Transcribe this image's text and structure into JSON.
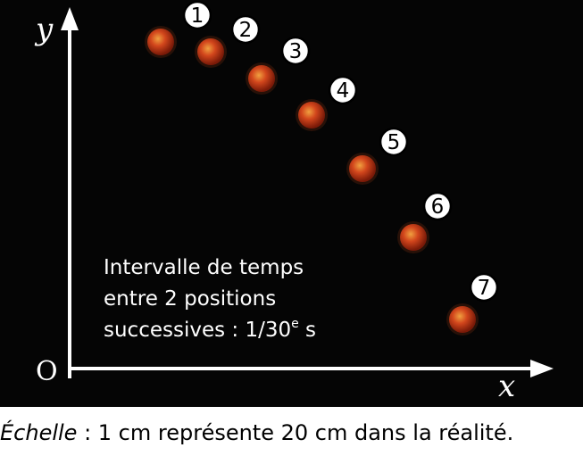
{
  "axes": {
    "y_label": "y",
    "x_label": "x",
    "origin_label": "O"
  },
  "balls": {
    "count": 7,
    "labels": [
      "1",
      "2",
      "3",
      "4",
      "5",
      "6",
      "7"
    ],
    "colors": {
      "core": "#f0a040",
      "mid": "#d2461c",
      "edge": "#7a1a08",
      "background": "#050505"
    }
  },
  "note": {
    "line1": "Intervalle de temps",
    "line2": "entre 2 positions",
    "line3_prefix": "successives : 1/30",
    "line3_sup": "e",
    "line3_suffix": " s"
  },
  "caption": {
    "label": "Échelle",
    "text": " : 1 cm représente 20 cm dans la réalité."
  }
}
